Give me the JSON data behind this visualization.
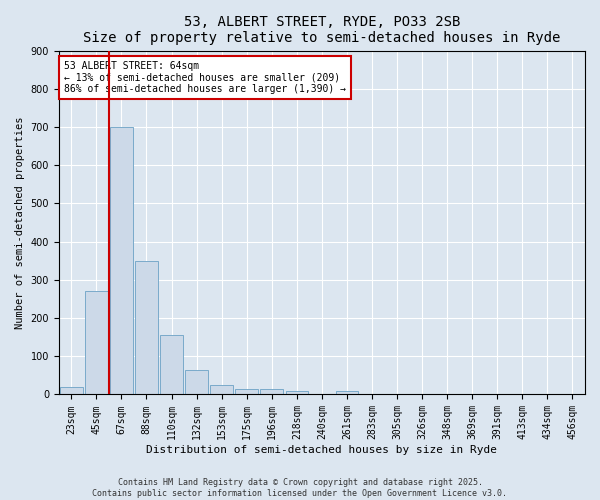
{
  "title": "53, ALBERT STREET, RYDE, PO33 2SB",
  "subtitle": "Size of property relative to semi-detached houses in Ryde",
  "xlabel": "Distribution of semi-detached houses by size in Ryde",
  "ylabel": "Number of semi-detached properties",
  "categories": [
    "23sqm",
    "45sqm",
    "67sqm",
    "88sqm",
    "110sqm",
    "132sqm",
    "153sqm",
    "175sqm",
    "196sqm",
    "218sqm",
    "240sqm",
    "261sqm",
    "283sqm",
    "305sqm",
    "326sqm",
    "348sqm",
    "369sqm",
    "391sqm",
    "413sqm",
    "434sqm",
    "456sqm"
  ],
  "values": [
    20,
    270,
    700,
    350,
    155,
    65,
    25,
    15,
    15,
    10,
    0,
    8,
    0,
    0,
    0,
    0,
    0,
    0,
    0,
    0,
    0
  ],
  "bar_color": "#ccd9e8",
  "bar_edge_color": "#7aaaca",
  "bar_edge_width": 0.7,
  "red_line_index": 2,
  "red_line_color": "#cc0000",
  "annotation_text": "53 ALBERT STREET: 64sqm\n← 13% of semi-detached houses are smaller (209)\n86% of semi-detached houses are larger (1,390) →",
  "annotation_box_color": "white",
  "annotation_box_edge_color": "#cc0000",
  "ylim": [
    0,
    900
  ],
  "yticks": [
    0,
    100,
    200,
    300,
    400,
    500,
    600,
    700,
    800,
    900
  ],
  "bg_color": "#dce6f0",
  "grid_color": "white",
  "footer_line1": "Contains HM Land Registry data © Crown copyright and database right 2025.",
  "footer_line2": "Contains public sector information licensed under the Open Government Licence v3.0.",
  "title_fontsize": 10,
  "xlabel_fontsize": 8,
  "ylabel_fontsize": 7.5,
  "tick_fontsize": 7,
  "annotation_fontsize": 7,
  "footer_fontsize": 6
}
